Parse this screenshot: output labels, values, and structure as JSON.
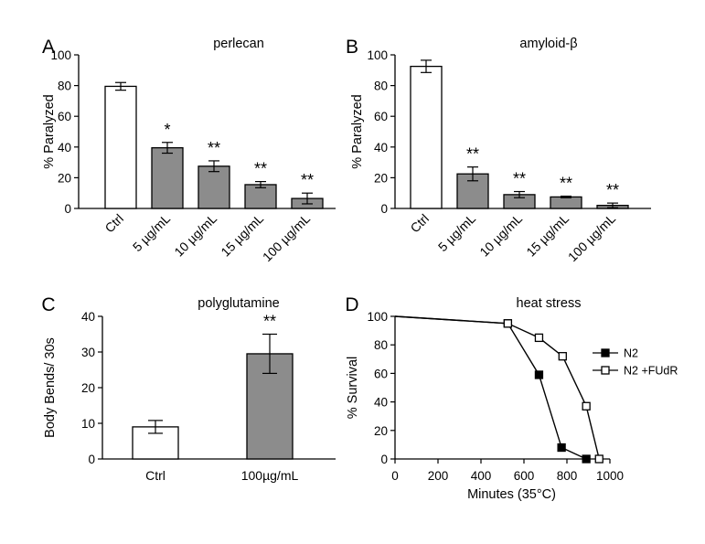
{
  "chart_data": [
    {
      "panel": "A",
      "type": "bar",
      "title": "perlecan",
      "ylabel": "% Paralyzed",
      "ylim": [
        0,
        100
      ],
      "yticks": [
        0,
        20,
        40,
        60,
        80,
        100
      ],
      "categories": [
        "Ctrl",
        "5 µg/mL",
        "10 µg/mL",
        "15 µg/mL",
        "100 µg/mL"
      ],
      "values": [
        79.5,
        39.5,
        27.5,
        15.5,
        6.5
      ],
      "errors": [
        2.5,
        3.5,
        3.5,
        2.0,
        3.5
      ],
      "significance": [
        "",
        "*",
        "**",
        "**",
        "**"
      ],
      "bar_colors": [
        "#ffffff",
        "#8c8c8c",
        "#8c8c8c",
        "#8c8c8c",
        "#8c8c8c"
      ]
    },
    {
      "panel": "B",
      "type": "bar",
      "title": "amyloid-β",
      "ylabel": "% Paralyzed",
      "ylim": [
        0,
        100
      ],
      "yticks": [
        0,
        20,
        40,
        60,
        80,
        100
      ],
      "categories": [
        "Ctrl",
        "5 µg/mL",
        "10 µg/mL",
        "15 µg/mL",
        "100 µg/mL"
      ],
      "values": [
        92.5,
        22.5,
        9.0,
        7.5,
        2.0
      ],
      "errors": [
        4.0,
        4.5,
        2.0,
        0.5,
        1.5
      ],
      "significance": [
        "",
        "**",
        "**",
        "**",
        "**"
      ],
      "bar_colors": [
        "#ffffff",
        "#8c8c8c",
        "#8c8c8c",
        "#8c8c8c",
        "#8c8c8c"
      ]
    },
    {
      "panel": "C",
      "type": "bar",
      "title": "polyglutamine",
      "ylabel": "Body Bends/ 30s",
      "ylim": [
        0,
        40
      ],
      "yticks": [
        0,
        10,
        20,
        30,
        40
      ],
      "categories": [
        "Ctrl",
        "100µg/mL"
      ],
      "values": [
        9.0,
        29.5
      ],
      "errors": [
        1.8,
        5.5
      ],
      "significance": [
        "",
        "**"
      ],
      "bar_colors": [
        "#ffffff",
        "#8c8c8c"
      ]
    },
    {
      "panel": "D",
      "type": "line",
      "title": "heat stress",
      "xlabel": "Minutes (35°C)",
      "ylabel": "% Survival",
      "xlim": [
        0,
        1000
      ],
      "ylim": [
        0,
        100
      ],
      "xticks": [
        0,
        200,
        400,
        600,
        800,
        1000
      ],
      "yticks": [
        0,
        20,
        40,
        60,
        80,
        100
      ],
      "legend_position": "right",
      "series": [
        {
          "name": "N2",
          "marker": "filled-square",
          "x": [
            0,
            525,
            670,
            775,
            890
          ],
          "y": [
            100,
            95,
            59,
            8,
            0
          ]
        },
        {
          "name": "N2 +FUdR",
          "marker": "open-square",
          "x": [
            0,
            525,
            670,
            780,
            890,
            950
          ],
          "y": [
            100,
            95,
            85,
            72,
            37,
            0
          ]
        }
      ]
    }
  ]
}
